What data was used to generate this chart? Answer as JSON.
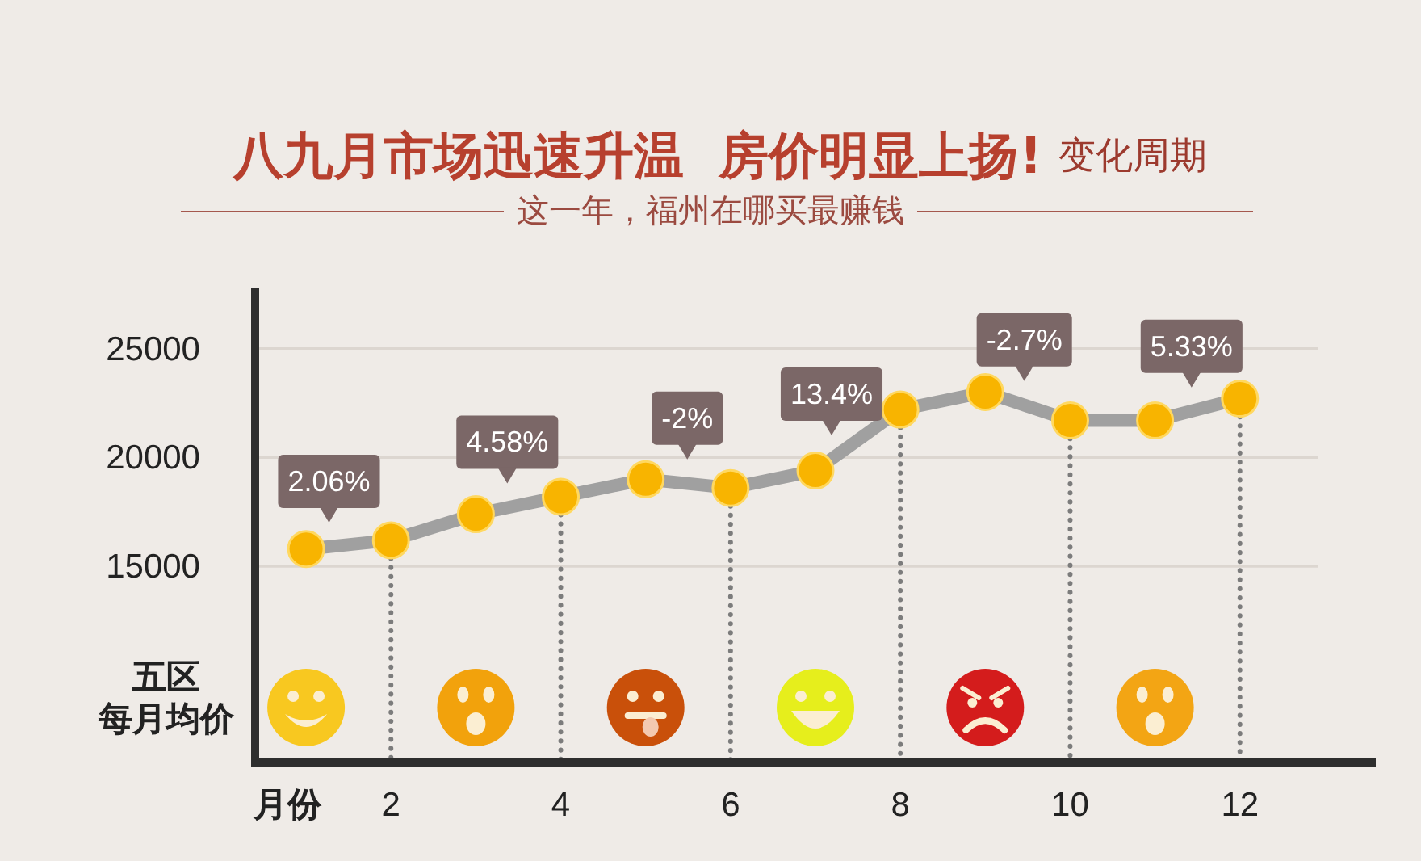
{
  "chart_data": {
    "type": "line",
    "title": "八九月市场迅速升温  房价明显上扬!",
    "subtitle": "这一年，福州在哪买最赚钱",
    "xlabel": "月份",
    "ylabel": "五区每月均价",
    "x": [
      1,
      2,
      3,
      4,
      5,
      6,
      7,
      8,
      9,
      10,
      11,
      12
    ],
    "series": [
      {
        "color": "#a0a0a0",
        "colors": [
          "#f8b400",
          "#f8b400",
          "#f8b400",
          "#f8b400",
          "#f8b400",
          "#f8b400",
          "#f8b400",
          "#f8b400",
          "#f8b400",
          "#f8b400",
          "#f8b400",
          "#f8b400"
        ],
        "values": [
          15800,
          16200,
          17400,
          18200,
          19000,
          18600,
          19400,
          22200,
          23000,
          21700,
          21700,
          22700
        ]
      }
    ],
    "xlim": [
      0.4,
      13.6
    ],
    "xticks": [
      2,
      4,
      6,
      8,
      10,
      12
    ],
    "ylim": [
      6000,
      27800
    ],
    "yticks": [
      15000,
      20000,
      25000
    ],
    "grid": "y",
    "marker": "circle",
    "ref_lines": [
      {
        "axis": "x",
        "value": 2,
        "color": "#7c7c7c",
        "line_style": "dotted"
      },
      {
        "axis": "x",
        "value": 4,
        "color": "#7c7c7c",
        "line_style": "dotted"
      },
      {
        "axis": "x",
        "value": 6,
        "color": "#7c7c7c",
        "line_style": "dotted"
      },
      {
        "axis": "x",
        "value": 8,
        "color": "#7c7c7c",
        "line_style": "dotted"
      },
      {
        "axis": "x",
        "value": 10,
        "color": "#7c7c7c",
        "line_style": "dotted"
      },
      {
        "axis": "x",
        "value": 12,
        "color": "#7c7c7c",
        "line_style": "dotted"
      }
    ],
    "annotations": [
      "变化周期",
      {
        "text": "2.06%",
        "x": 1.27,
        "y": 15900
      },
      {
        "text": "4.58%",
        "x": 3.37,
        "y": 17700
      },
      {
        "text": "-2%",
        "x": 5.49,
        "y": 18800
      },
      {
        "text": "13.4%",
        "x": 7.19,
        "y": 19900
      },
      {
        "text": "-2.7%",
        "x": 9.46,
        "y": 22400
      },
      {
        "text": "5.33%",
        "x": 11.43,
        "y": 22100
      }
    ]
  }
}
